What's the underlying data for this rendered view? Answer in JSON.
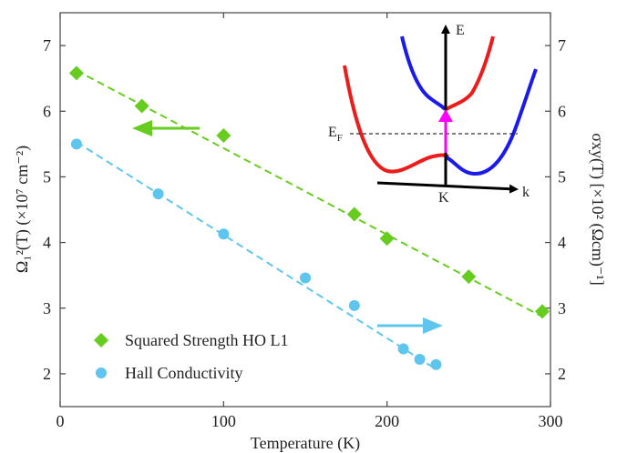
{
  "chart_data": {
    "type": "scatter",
    "xlabel": "Temperature (K)",
    "ylabel_left": "Ω₁²(T) (×10⁷ cm⁻²)",
    "ylabel_right": "σxy(T) [×10² (Ωcm)⁻¹]",
    "xlim": [
      0,
      300
    ],
    "ylim_left": [
      1.5,
      7.5
    ],
    "ylim_right": [
      1.5,
      7.5
    ],
    "xticks": [
      "0",
      "100",
      "200",
      "300"
    ],
    "yticks_left": [
      "2",
      "3",
      "4",
      "5",
      "6",
      "7"
    ],
    "yticks_right": [
      "2",
      "3",
      "4",
      "5",
      "6",
      "7"
    ],
    "legend_position": "bottom-left",
    "series": [
      {
        "name": "Squared Strength HO L1",
        "color": "#66cc1e",
        "marker": "diamond",
        "axis": "left",
        "x": [
          10,
          50,
          100,
          180,
          200,
          250,
          295
        ],
        "y": [
          6.58,
          6.08,
          5.63,
          4.43,
          4.06,
          3.48,
          2.95
        ],
        "fit": {
          "x": [
            10,
            295
          ],
          "y": [
            6.62,
            2.87
          ]
        }
      },
      {
        "name": "Hall Conductivity",
        "color": "#5ec6ee",
        "marker": "circle",
        "axis": "right",
        "x": [
          10,
          60,
          100,
          150,
          180,
          210,
          220,
          230
        ],
        "y": [
          5.5,
          4.74,
          4.13,
          3.46,
          3.04,
          2.38,
          2.22,
          2.14
        ],
        "fit": {
          "x": [
            10,
            230
          ],
          "y": [
            5.53,
            2.07
          ]
        }
      }
    ],
    "inset": {
      "energy_label": "E",
      "momentum_label": "k",
      "k_point_label": "K",
      "fermi_label": "E",
      "fermi_subscript": "F"
    }
  },
  "colors": {
    "red_band": "#ee1b1b",
    "blue_band": "#1a1aee",
    "transition_arrow": "#ff00ff",
    "axis": "#000000"
  }
}
